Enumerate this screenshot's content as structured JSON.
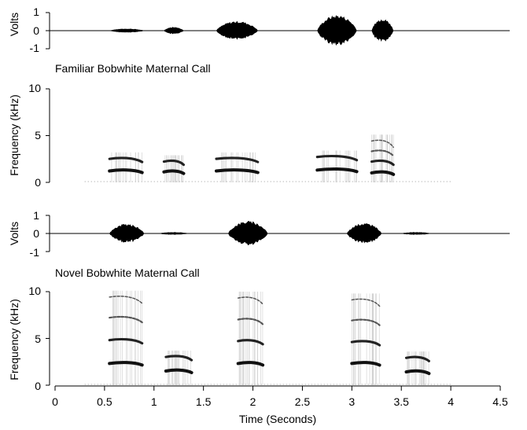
{
  "chart_data": [
    {
      "type": "waveform",
      "panel": "familiar-oscillogram",
      "ylabel": "Volts",
      "ylim": [
        -1,
        1
      ],
      "yticks": [
        "-1",
        "0",
        "1"
      ],
      "xlim": [
        0,
        4.5
      ],
      "envelopes": [
        {
          "start": 0.55,
          "end": 0.9,
          "amp": 0.12
        },
        {
          "start": 1.1,
          "end": 1.3,
          "amp": 0.22
        },
        {
          "start": 1.63,
          "end": 2.05,
          "amp": 0.55
        },
        {
          "start": 2.65,
          "end": 3.05,
          "amp": 0.9
        },
        {
          "start": 3.2,
          "end": 3.42,
          "amp": 0.7
        }
      ]
    },
    {
      "type": "spectrogram",
      "panel": "familiar-spectrogram",
      "title": "Familiar Bobwhite Maternal Call",
      "ylabel": "Frequency (kHz)",
      "ylim": [
        0,
        10
      ],
      "yticks": [
        "0",
        "5",
        "10"
      ],
      "xlim": [
        0,
        4.5
      ],
      "notes": [
        {
          "start": 0.55,
          "end": 0.88,
          "harmonics": [
            1.3,
            2.6
          ]
        },
        {
          "start": 1.1,
          "end": 1.3,
          "harmonics": [
            1.2,
            2.3
          ]
        },
        {
          "start": 1.63,
          "end": 2.05,
          "harmonics": [
            1.3,
            2.6
          ]
        },
        {
          "start": 2.65,
          "end": 3.05,
          "harmonics": [
            1.4,
            2.8
          ]
        },
        {
          "start": 3.2,
          "end": 3.42,
          "harmonics": [
            1.1,
            2.3,
            3.4,
            4.5
          ]
        }
      ]
    },
    {
      "type": "waveform",
      "panel": "novel-oscillogram",
      "ylabel": "Volts",
      "ylim": [
        -1,
        1
      ],
      "yticks": [
        "-1",
        "0",
        "1"
      ],
      "xlim": [
        0,
        4.5
      ],
      "envelopes": [
        {
          "start": 0.55,
          "end": 0.9,
          "amp": 0.55
        },
        {
          "start": 1.05,
          "end": 1.35,
          "amp": 0.08
        },
        {
          "start": 1.75,
          "end": 2.15,
          "amp": 0.72
        },
        {
          "start": 2.95,
          "end": 3.3,
          "amp": 0.6
        },
        {
          "start": 3.5,
          "end": 3.8,
          "amp": 0.08
        }
      ]
    },
    {
      "type": "spectrogram",
      "panel": "novel-spectrogram",
      "title": "Novel Bobwhite Maternal Call",
      "ylabel": "Frequency (kHz)",
      "xlabel": "Time (Seconds)",
      "ylim": [
        0,
        10
      ],
      "yticks": [
        "0",
        "5",
        "10"
      ],
      "xlim": [
        0,
        4.5
      ],
      "xticks": [
        "0",
        "0.5",
        "1",
        "1.5",
        "2",
        "2.5",
        "3",
        "3.5",
        "4",
        "4.5"
      ],
      "notes": [
        {
          "start": 0.55,
          "end": 0.88,
          "harmonics": [
            2.4,
            4.9,
            7.3,
            9.5
          ]
        },
        {
          "start": 1.12,
          "end": 1.38,
          "harmonics": [
            1.6,
            3.1
          ]
        },
        {
          "start": 1.85,
          "end": 2.1,
          "harmonics": [
            2.4,
            4.8,
            7.1,
            9.4
          ]
        },
        {
          "start": 3.0,
          "end": 3.28,
          "harmonics": [
            2.4,
            4.7,
            7.0,
            9.2
          ]
        },
        {
          "start": 3.55,
          "end": 3.78,
          "harmonics": [
            1.5,
            3.0
          ]
        }
      ]
    }
  ]
}
